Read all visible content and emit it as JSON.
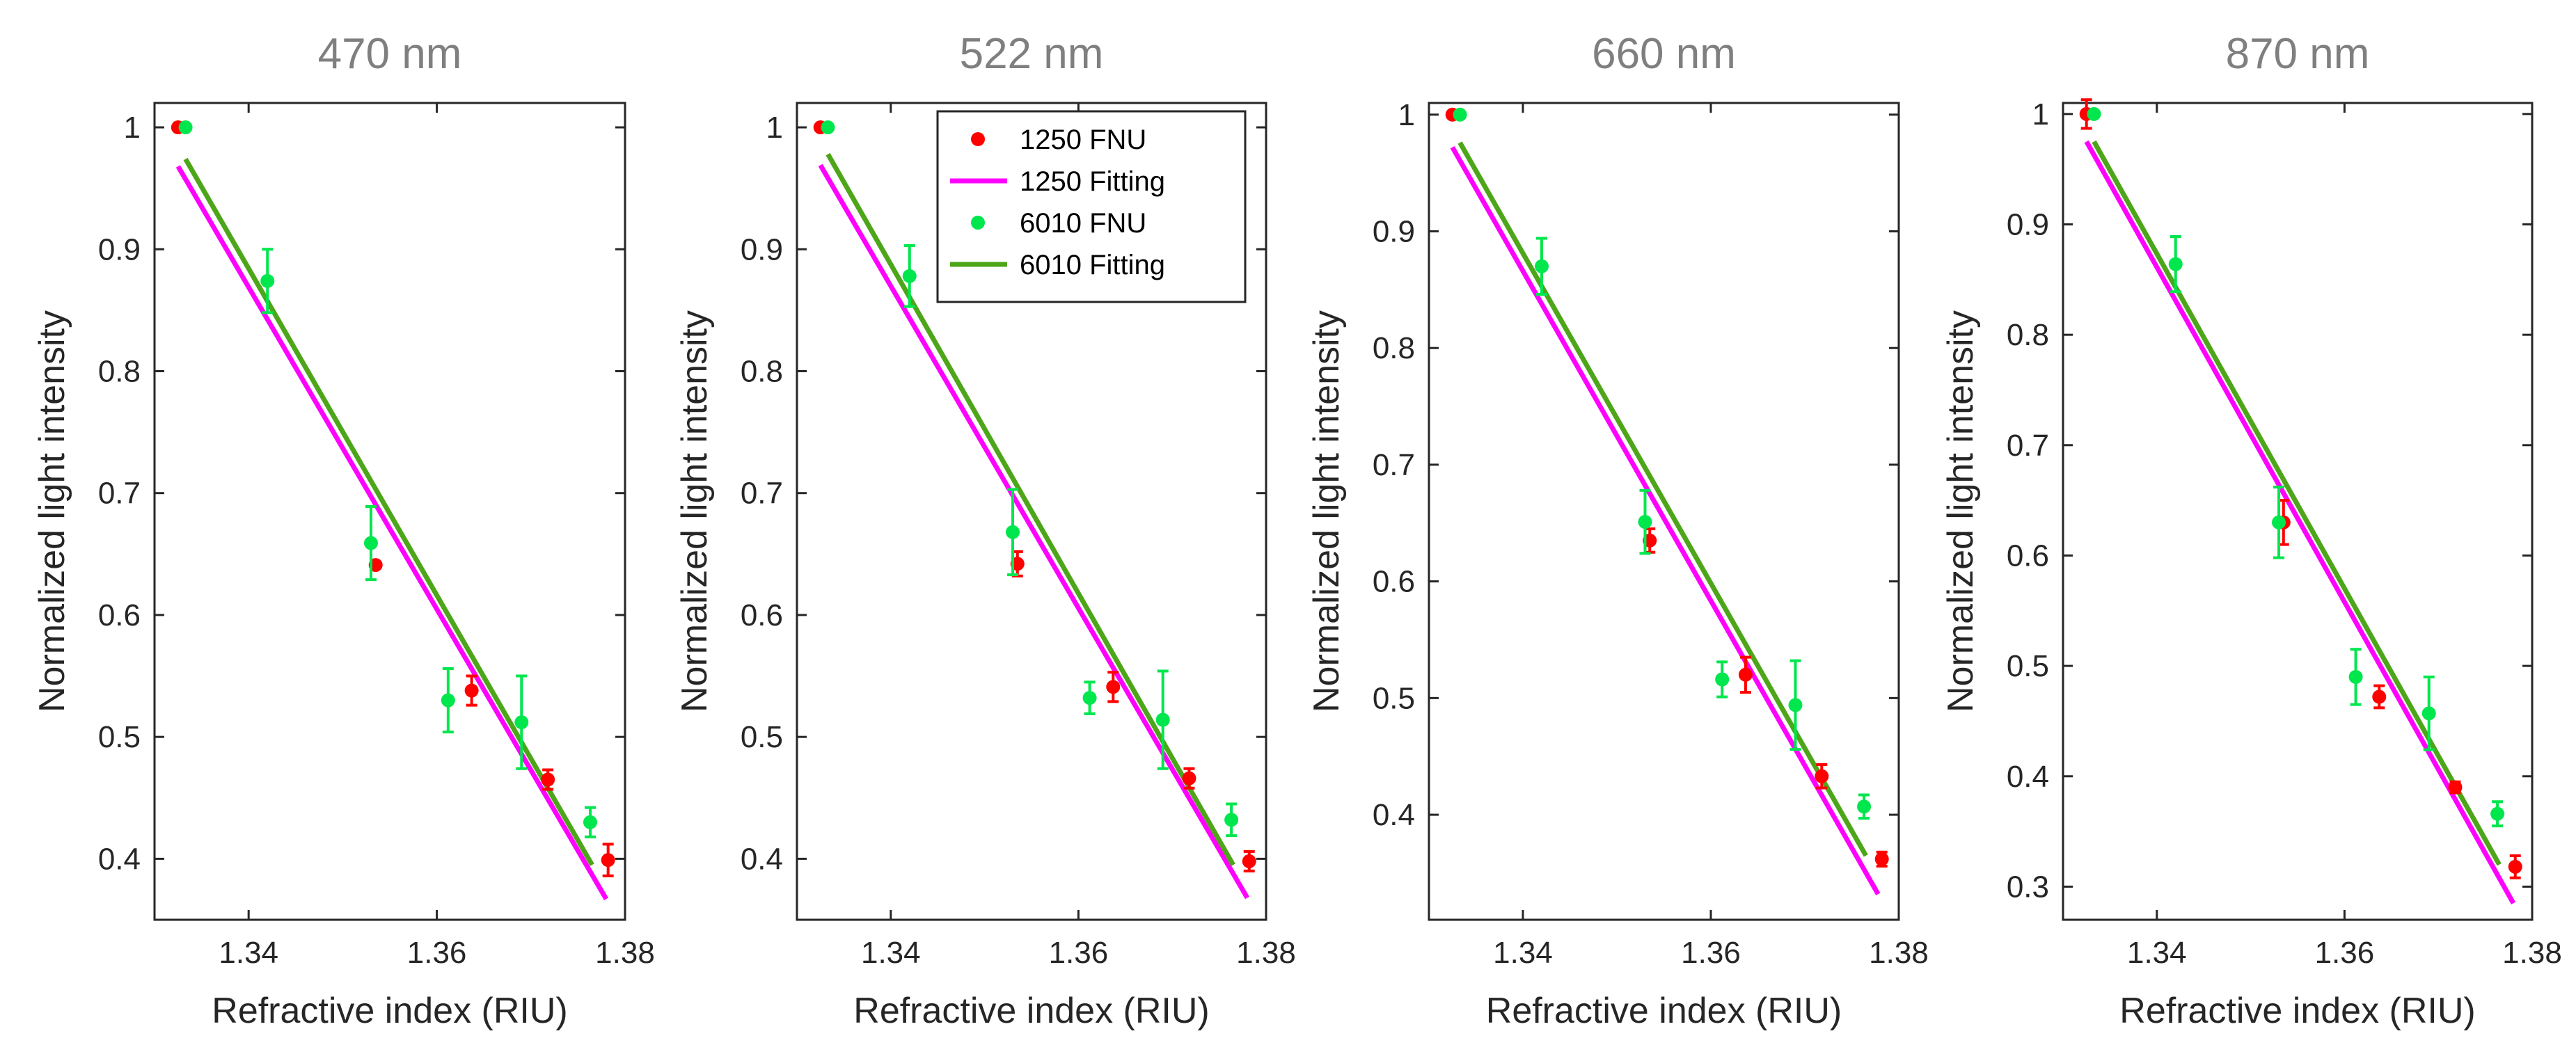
{
  "legend": {
    "entries": [
      {
        "label": "1250 FNU",
        "kind": "marker",
        "color": "#ff0000"
      },
      {
        "label": "1250 Fitting",
        "kind": "line",
        "color": "#ff00ff"
      },
      {
        "label": "6010 FNU",
        "kind": "marker",
        "color": "#00e64d"
      },
      {
        "label": "6010 Fitting",
        "kind": "line",
        "color": "#4da619"
      }
    ]
  },
  "chart_data": [
    {
      "type": "scatter",
      "title": "470 nm",
      "xlabel": "Refractive index (RIU)",
      "ylabel": "Normalized light intensity",
      "xlim": [
        1.33,
        1.38
      ],
      "ylim": [
        0.35,
        1.02
      ],
      "xticks": [
        1.34,
        1.36,
        1.38
      ],
      "xtick_labels": [
        "1.34",
        "1.36",
        "1.38"
      ],
      "yticks": [
        0.4,
        0.5,
        0.6,
        0.7,
        0.8,
        0.9,
        1.0
      ],
      "ytick_labels": [
        "0.4",
        "0.5",
        "0.6",
        "0.7",
        "0.8",
        "0.9",
        "1"
      ],
      "series": [
        {
          "name": "1250 FNU",
          "type": "scatter",
          "color": "#ff0000",
          "x": [
            1.3325,
            1.3535,
            1.3637,
            1.3718,
            1.3782
          ],
          "y": [
            1.0,
            0.641,
            0.538,
            0.465,
            0.399
          ],
          "err": [
            0.0,
            0.0,
            0.012,
            0.008,
            0.013
          ]
        },
        {
          "name": "1250 Fitting",
          "type": "line",
          "color": "#ff00ff",
          "x": [
            1.3325,
            1.378
          ],
          "y": [
            0.968,
            0.367
          ]
        },
        {
          "name": "6010 FNU",
          "type": "scatter",
          "color": "#00e64d",
          "x": [
            1.3333,
            1.342,
            1.353,
            1.3612,
            1.369,
            1.3763
          ],
          "y": [
            1.0,
            0.874,
            0.659,
            0.53,
            0.512,
            0.43
          ],
          "err": [
            0.0,
            0.026,
            0.03,
            0.026,
            0.038,
            0.012
          ]
        },
        {
          "name": "6010 Fitting",
          "type": "line",
          "color": "#4da619",
          "x": [
            1.3333,
            1.3765
          ],
          "y": [
            0.974,
            0.395
          ]
        }
      ]
    },
    {
      "type": "scatter",
      "title": "522 nm",
      "xlabel": "Refractive index (RIU)",
      "ylabel": "Normalized light intensity",
      "xlim": [
        1.33,
        1.38
      ],
      "ylim": [
        0.35,
        1.02
      ],
      "xticks": [
        1.34,
        1.36,
        1.38
      ],
      "xtick_labels": [
        "1.34",
        "1.36",
        "1.38"
      ],
      "yticks": [
        0.4,
        0.5,
        0.6,
        0.7,
        0.8,
        0.9,
        1.0
      ],
      "ytick_labels": [
        "0.4",
        "0.5",
        "0.6",
        "0.7",
        "0.8",
        "0.9",
        "1"
      ],
      "series": [
        {
          "name": "1250 FNU",
          "type": "scatter",
          "color": "#ff0000",
          "x": [
            1.3325,
            1.3535,
            1.3637,
            1.3718,
            1.3782
          ],
          "y": [
            1.0,
            0.642,
            0.541,
            0.466,
            0.398
          ],
          "err": [
            0.0,
            0.01,
            0.012,
            0.008,
            0.008
          ]
        },
        {
          "name": "1250 Fitting",
          "type": "line",
          "color": "#ff00ff",
          "x": [
            1.3325,
            1.378
          ],
          "y": [
            0.969,
            0.368
          ]
        },
        {
          "name": "6010 FNU",
          "type": "scatter",
          "color": "#00e64d",
          "x": [
            1.3333,
            1.342,
            1.353,
            1.3612,
            1.369,
            1.3763
          ],
          "y": [
            1.0,
            0.878,
            0.668,
            0.532,
            0.514,
            0.432
          ],
          "err": [
            0.0,
            0.025,
            0.035,
            0.013,
            0.04,
            0.013
          ]
        },
        {
          "name": "6010 Fitting",
          "type": "line",
          "color": "#4da619",
          "x": [
            1.3333,
            1.3765
          ],
          "y": [
            0.978,
            0.395
          ]
        }
      ]
    },
    {
      "type": "scatter",
      "title": "660 nm",
      "xlabel": "Refractive index (RIU)",
      "ylabel": "Normalized light intensity",
      "xlim": [
        1.33,
        1.38
      ],
      "ylim": [
        0.31,
        1.01
      ],
      "xticks": [
        1.34,
        1.36,
        1.38
      ],
      "xtick_labels": [
        "1.34",
        "1.36",
        "1.38"
      ],
      "yticks": [
        0.4,
        0.5,
        0.6,
        0.7,
        0.8,
        0.9,
        1.0
      ],
      "ytick_labels": [
        "0.4",
        "0.5",
        "0.6",
        "0.7",
        "0.8",
        "0.9",
        "1"
      ],
      "series": [
        {
          "name": "1250 FNU",
          "type": "scatter",
          "color": "#ff0000",
          "x": [
            1.3325,
            1.3535,
            1.3637,
            1.3718,
            1.3782
          ],
          "y": [
            1.0,
            0.635,
            0.52,
            0.433,
            0.362
          ],
          "err": [
            0.0,
            0.01,
            0.015,
            0.01,
            0.006
          ]
        },
        {
          "name": "1250 Fitting",
          "type": "line",
          "color": "#ff00ff",
          "x": [
            1.3325,
            1.3778
          ],
          "y": [
            0.972,
            0.332
          ]
        },
        {
          "name": "6010 FNU",
          "type": "scatter",
          "color": "#00e64d",
          "x": [
            1.3333,
            1.342,
            1.353,
            1.3612,
            1.369,
            1.3763
          ],
          "y": [
            1.0,
            0.87,
            0.651,
            0.516,
            0.494,
            0.407
          ],
          "err": [
            0.0,
            0.024,
            0.027,
            0.015,
            0.038,
            0.01
          ]
        },
        {
          "name": "6010 Fitting",
          "type": "line",
          "color": "#4da619",
          "x": [
            1.3333,
            1.3765
          ],
          "y": [
            0.976,
            0.365
          ]
        }
      ]
    },
    {
      "type": "scatter",
      "title": "870 nm",
      "xlabel": "Refractive index (RIU)",
      "ylabel": "Normalized light intensity",
      "xlim": [
        1.33,
        1.38
      ],
      "ylim": [
        0.27,
        1.01
      ],
      "xticks": [
        1.34,
        1.36,
        1.38
      ],
      "xtick_labels": [
        "1.34",
        "1.36",
        "1.38"
      ],
      "yticks": [
        0.3,
        0.4,
        0.5,
        0.6,
        0.7,
        0.8,
        0.9,
        1.0
      ],
      "ytick_labels": [
        "0.3",
        "0.4",
        "0.5",
        "0.6",
        "0.7",
        "0.8",
        "0.9",
        "1"
      ],
      "series": [
        {
          "name": "1250 FNU",
          "type": "scatter",
          "color": "#ff0000",
          "x": [
            1.3325,
            1.3535,
            1.3637,
            1.3718,
            1.3782
          ],
          "y": [
            1.0,
            0.63,
            0.472,
            0.39,
            0.318
          ],
          "err": [
            0.013,
            0.02,
            0.01,
            0.005,
            0.01
          ]
        },
        {
          "name": "1250 Fitting",
          "type": "line",
          "color": "#ff00ff",
          "x": [
            1.3325,
            1.378
          ],
          "y": [
            0.975,
            0.285
          ]
        },
        {
          "name": "6010 FNU",
          "type": "scatter",
          "color": "#00e64d",
          "x": [
            1.3333,
            1.342,
            1.353,
            1.3612,
            1.369,
            1.3763
          ],
          "y": [
            1.0,
            0.864,
            0.63,
            0.49,
            0.457,
            0.366
          ],
          "err": [
            0.0,
            0.025,
            0.032,
            0.025,
            0.033,
            0.011
          ]
        },
        {
          "name": "6010 Fitting",
          "type": "line",
          "color": "#4da619",
          "x": [
            1.3333,
            1.3765
          ],
          "y": [
            0.975,
            0.32
          ]
        }
      ]
    }
  ]
}
